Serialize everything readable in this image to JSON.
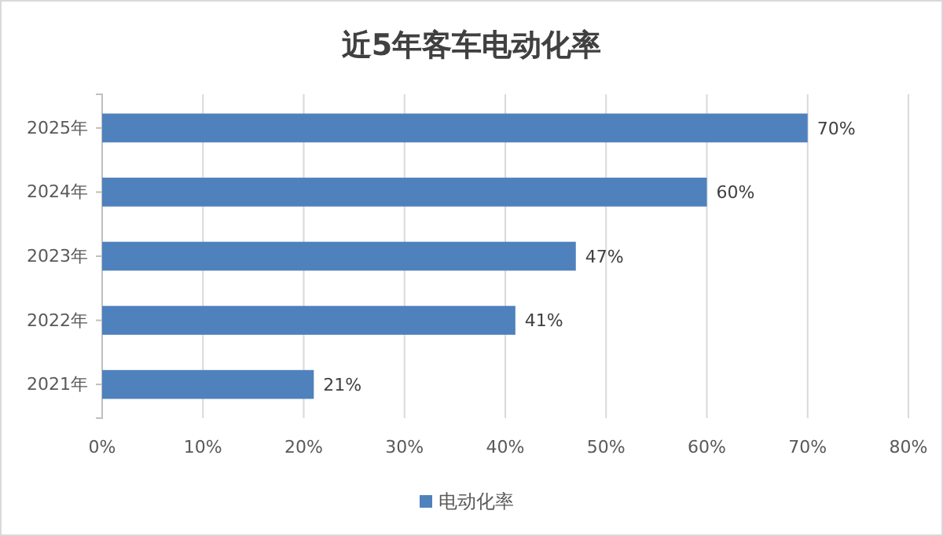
{
  "chart_data": {
    "type": "bar",
    "orientation": "horizontal",
    "title": "近5年客车电动化率",
    "categories": [
      "2025年",
      "2024年",
      "2023年",
      "2022年",
      "2021年"
    ],
    "series": [
      {
        "name": "电动化率",
        "color": "#4f81bd",
        "values": [
          70,
          60,
          47,
          41,
          21
        ]
      }
    ],
    "value_labels": [
      "70%",
      "60%",
      "47%",
      "41%",
      "21%"
    ],
    "xlim": [
      0,
      80
    ],
    "xticks": [
      {
        "value": 0,
        "label": "0%"
      },
      {
        "value": 10,
        "label": "10%"
      },
      {
        "value": 20,
        "label": "20%"
      },
      {
        "value": 30,
        "label": "30%"
      },
      {
        "value": 40,
        "label": "40%"
      },
      {
        "value": 50,
        "label": "50%"
      },
      {
        "value": 60,
        "label": "60%"
      },
      {
        "value": 70,
        "label": "70%"
      },
      {
        "value": 80,
        "label": "80%"
      }
    ],
    "grid": "x",
    "legend": "bottom"
  }
}
